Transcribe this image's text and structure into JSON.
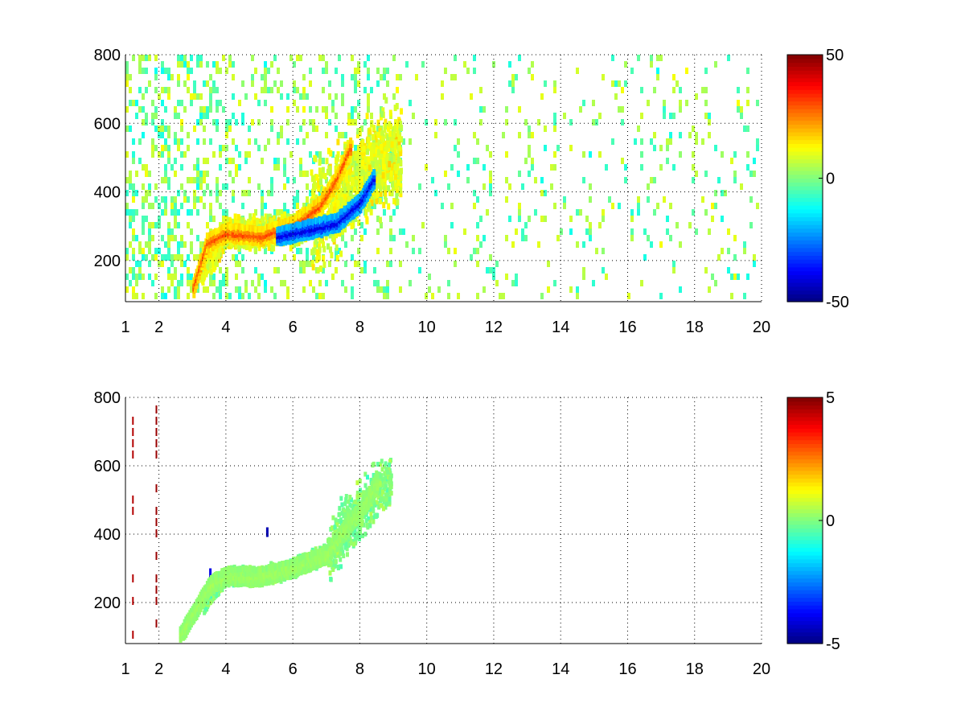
{
  "chart_data": [
    {
      "type": "heatmap",
      "title": "",
      "xlabel": "",
      "ylabel": "",
      "xlim": [
        1,
        20
      ],
      "ylim": [
        80,
        800
      ],
      "xticks": [
        1,
        2,
        4,
        6,
        8,
        10,
        12,
        14,
        16,
        18,
        20
      ],
      "xtick_labels": [
        "1",
        "2",
        "4",
        "6",
        "8",
        "10",
        "12",
        "14",
        "16",
        "18",
        "20"
      ],
      "yticks": [
        200,
        400,
        600,
        800
      ],
      "ytick_labels": [
        "200",
        "400",
        "600",
        "800"
      ],
      "grid": true,
      "colormap": "jet",
      "colorbar": {
        "min": -50,
        "max": 50,
        "ticks": [
          -50,
          0,
          50
        ],
        "tick_labels": [
          "-50",
          "0",
          "50"
        ]
      },
      "features": [
        {
          "name": "positive ridge",
          "x": [
            3.0,
            3.4,
            4.0,
            5.0,
            6.0,
            6.8,
            7.3,
            7.7
          ],
          "y": [
            130,
            260,
            290,
            280,
            310,
            370,
            450,
            540
          ],
          "value": 30
        },
        {
          "name": "negative ridge",
          "x": [
            5.5,
            6.5,
            7.3,
            8.0,
            8.4
          ],
          "y": [
            280,
            300,
            320,
            380,
            450
          ],
          "value": -40
        }
      ]
    },
    {
      "type": "heatmap",
      "title": "",
      "xlabel": "",
      "ylabel": "",
      "xlim": [
        1,
        20
      ],
      "ylim": [
        80,
        800
      ],
      "xticks": [
        1,
        2,
        4,
        6,
        8,
        10,
        12,
        14,
        16,
        18,
        20
      ],
      "xtick_labels": [
        "1",
        "2",
        "4",
        "6",
        "8",
        "10",
        "12",
        "14",
        "16",
        "18",
        "20"
      ],
      "yticks": [
        200,
        400,
        600,
        800
      ],
      "ytick_labels": [
        "200",
        "400",
        "600",
        "800"
      ],
      "grid": true,
      "colormap": "jet",
      "colorbar": {
        "min": -5,
        "max": 5,
        "ticks": [
          -5,
          0,
          5
        ],
        "tick_labels": [
          "-5",
          "0",
          "5"
        ]
      },
      "features": [
        {
          "name": "ridge",
          "x": [
            2.6,
            3.5,
            4.0,
            5.0,
            6.0,
            7.0,
            7.5,
            8.0,
            8.5
          ],
          "y": [
            110,
            260,
            285,
            285,
            310,
            350,
            420,
            480,
            560
          ],
          "value": 0.3
        }
      ]
    }
  ]
}
